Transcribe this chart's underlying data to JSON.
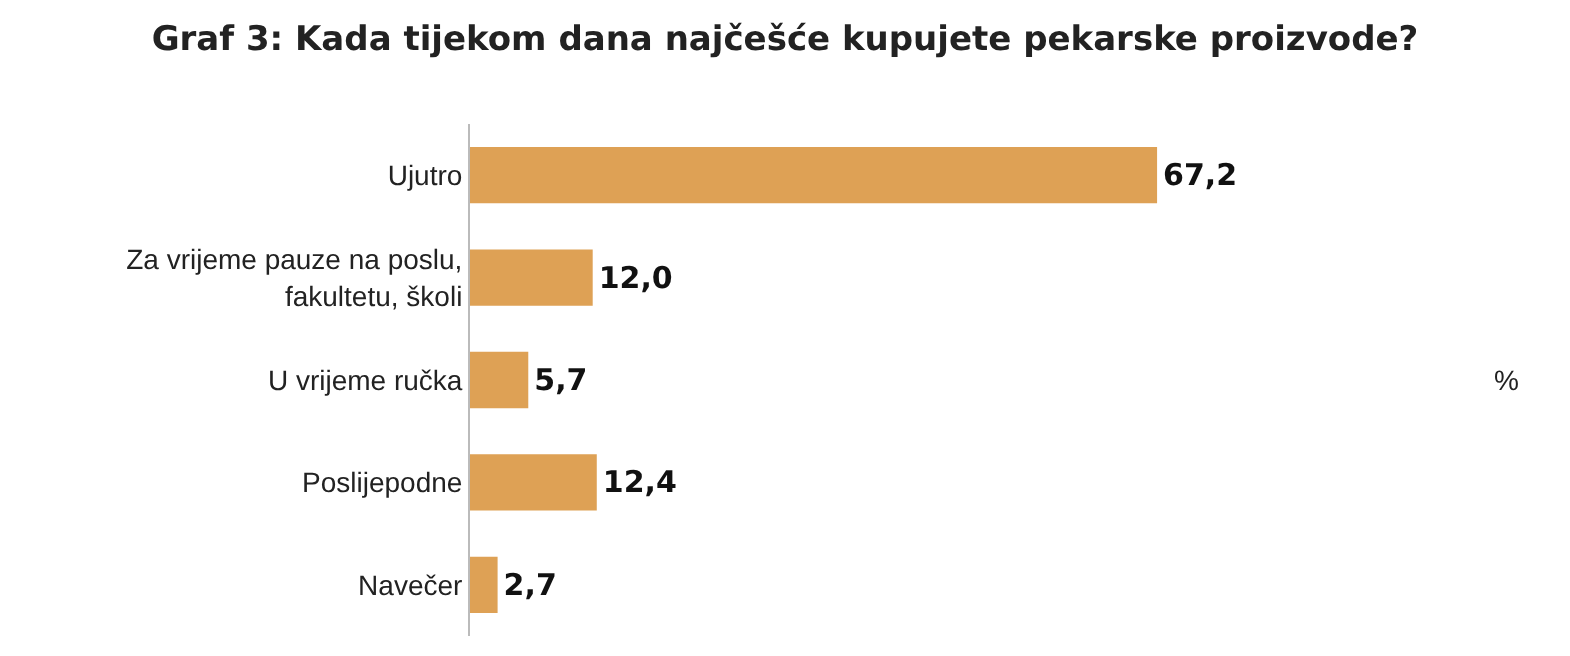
{
  "chart_data": {
    "type": "bar",
    "title": "Graf 3: Kada tijekom dana najčešće kupujete pekarske proizvode?",
    "orientation": "horizontal",
    "categories": [
      "Ujutro",
      "Za vrijeme pauze na poslu, fakultetu, školi",
      "U vrijeme ručka",
      "Poslijepodne",
      "Navečer"
    ],
    "values": [
      67.2,
      12.0,
      5.7,
      12.4,
      2.7
    ],
    "color": "#dea155",
    "value_labels": [
      "67,2",
      "12,0",
      "5,7",
      "12,4",
      "2,7"
    ],
    "annotations": [
      "%"
    ]
  }
}
